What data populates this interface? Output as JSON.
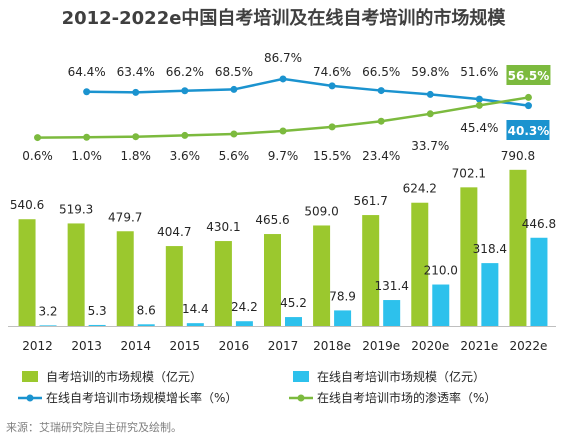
{
  "chart_data": {
    "type": "bar",
    "title": "2012-2022e中国自考培训及在线自考培训的市场规模",
    "categories": [
      "2012",
      "2013",
      "2014",
      "2015",
      "2016",
      "2017",
      "2018e",
      "2019e",
      "2020e",
      "2021e",
      "2022e"
    ],
    "bar_series": [
      {
        "name": "自考培训的市场规模（亿元）",
        "color": "#9bc82e",
        "values": [
          540.6,
          519.3,
          479.7,
          404.7,
          430.1,
          465.6,
          509.0,
          561.7,
          624.2,
          702.1,
          790.8
        ],
        "labels": [
          "540.6",
          "519.3",
          "479.7",
          "404.7",
          "430.1",
          "465.6",
          "509.0",
          "561.7",
          "624.2",
          "702.1",
          "790.8"
        ]
      },
      {
        "name": "在线自考培训市场规模（亿元）",
        "color": "#2dc1ec",
        "values": [
          3.2,
          5.3,
          8.6,
          14.4,
          24.2,
          45.2,
          78.9,
          131.4,
          210.0,
          318.4,
          446.8
        ],
        "labels": [
          "3.2",
          "5.3",
          "8.6",
          "14.4",
          "24.2",
          "45.2",
          "78.9",
          "131.4",
          "210.0",
          "318.4",
          "446.8"
        ]
      }
    ],
    "line_series": [
      {
        "name": "在线自考培训市场规模增长率（%）",
        "color": "#1b93cf",
        "values": [
          64.4,
          63.4,
          66.2,
          68.5,
          86.7,
          74.6,
          66.5,
          59.8,
          51.6,
          40.3
        ],
        "labels": [
          "64.4%",
          "63.4%",
          "66.2%",
          "68.5%",
          "86.7%",
          "74.6%",
          "66.5%",
          "59.8%",
          "51.6%",
          "40.3%"
        ],
        "start_index": 1
      },
      {
        "name": "在线自考培训市场的渗透率（%）",
        "color": "#7cba3e",
        "values": [
          0.6,
          1.0,
          1.8,
          3.6,
          5.6,
          9.7,
          15.5,
          23.4,
          33.7,
          45.4,
          56.5
        ],
        "labels": [
          "0.6%",
          "1.0%",
          "1.8%",
          "3.6%",
          "5.6%",
          "9.7%",
          "15.5%",
          "23.4%",
          "33.7%",
          "45.4%",
          "56.5%"
        ],
        "start_index": 0
      }
    ],
    "ylim": [
      0,
      800
    ]
  },
  "source": "来源：艾瑞研究院自主研究及绘制。"
}
